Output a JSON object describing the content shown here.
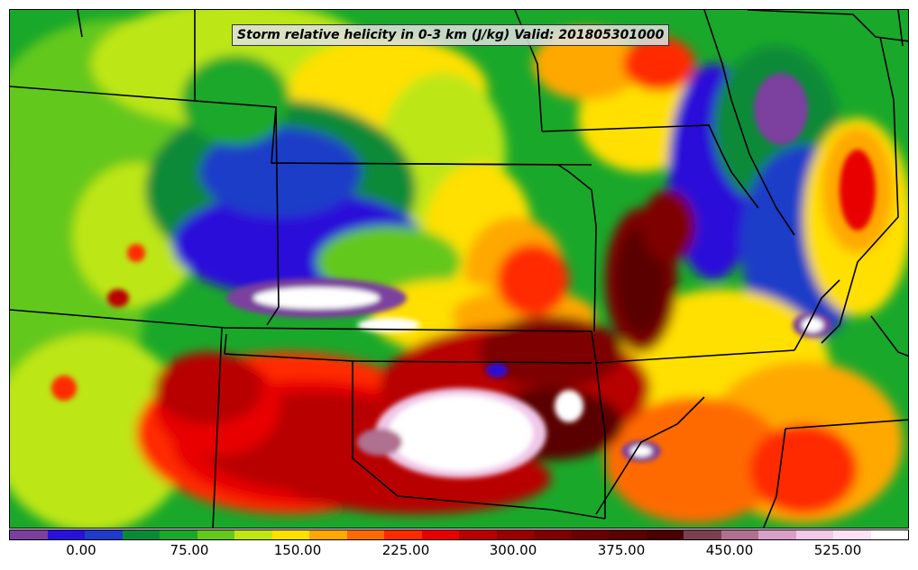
{
  "title": "Storm relative helicity in 0-3 km (J/kg) Valid: 201805301000",
  "colorbar": {
    "colors": [
      "#7b3f9e",
      "#2a10d8",
      "#1e3cc8",
      "#0a8a38",
      "#1aa82a",
      "#63c81a",
      "#bde614",
      "#ffe000",
      "#ffa800",
      "#ff6a00",
      "#ff2a00",
      "#e80000",
      "#b80000",
      "#9a0000",
      "#7e0000",
      "#6a0000",
      "#5a0000",
      "#4a0000",
      "#7a4050",
      "#b07090",
      "#d8a0c8",
      "#f0c8e8",
      "#fbe2f5",
      "#ffffff"
    ],
    "tick_labels": [
      "0.00",
      "75.00",
      "150.00",
      "225.00",
      "300.00",
      "375.00",
      "450.00",
      "525.00"
    ]
  },
  "map": {
    "boundary_color": "#000000",
    "palette": {
      "purple": "#7b3f9e",
      "blue": "#2a10d8",
      "darkblue": "#1e3cc8",
      "darkgreen": "#0a8a38",
      "green": "#1aa82a",
      "lime": "#63c81a",
      "yellowgreen": "#bde614",
      "yellow": "#ffe000",
      "orange": "#ffa800",
      "orangered": "#ff6a00",
      "red": "#ff2a00",
      "crimson": "#e80000",
      "darkred": "#b80000",
      "maroon": "#7e0000",
      "darkmaroon": "#5a0000",
      "mauve": "#b07090",
      "pink": "#f0c8e8",
      "white": "#ffffff"
    }
  }
}
